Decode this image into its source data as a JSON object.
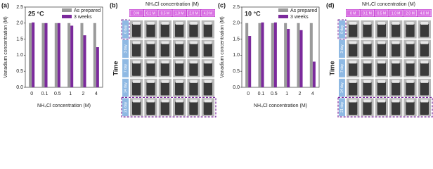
{
  "chart_data": [
    {
      "type": "bar",
      "panel_label": "(a)",
      "annotation": "25 °C",
      "x_label": "NH₄Cl concentration (M)",
      "y_label": "Vanadium concentration (M)",
      "categories": [
        "0",
        "0.1",
        "0.5",
        "1",
        "2",
        "4"
      ],
      "series": [
        {
          "name": "As prepared",
          "color": "#9a9a9a",
          "values": [
            2.0,
            2.0,
            2.0,
            2.0,
            2.0,
            2.0
          ]
        },
        {
          "name": "3 weeks",
          "color": "#7b2a9c",
          "values": [
            2.02,
            2.0,
            2.0,
            1.92,
            1.62,
            1.25
          ]
        }
      ],
      "ylim": [
        0,
        2.5
      ],
      "yticks": [
        {
          "value": 0,
          "label": "0.0"
        },
        0.5,
        {
          "value": 1,
          "label": "1.0"
        },
        1.5,
        {
          "value": 2,
          "label": "2.0"
        },
        2.5
      ],
      "legend": "upper right"
    },
    {
      "type": "bar",
      "panel_label": "(c)",
      "annotation": "10 °C",
      "x_label": "NH₄Cl concentration (M)",
      "y_label": "Vanadium concentration (M)",
      "categories": [
        "0",
        "0.1",
        "0.5",
        "1",
        "2",
        "4"
      ],
      "series": [
        {
          "name": "As prepared",
          "color": "#9a9a9a",
          "values": [
            2.0,
            2.0,
            2.0,
            2.0,
            2.0,
            2.0
          ]
        },
        {
          "name": "3 weeks",
          "color": "#7b2a9c",
          "values": [
            1.6,
            2.02,
            2.02,
            1.82,
            1.78,
            0.8
          ]
        }
      ],
      "ylim": [
        0,
        2.5
      ],
      "yticks": [
        {
          "value": 0,
          "label": "0.0"
        },
        0.5,
        {
          "value": 1,
          "label": "1.0"
        },
        1.5,
        {
          "value": 2,
          "label": "2.0"
        },
        2.5
      ],
      "legend": "upper right"
    }
  ],
  "photos": [
    {
      "panel_label": "(b)",
      "title": "NH₄Cl concentration (M)",
      "axis": "Time",
      "columns": [
        "0 M",
        "0.1 M",
        "0.5 M",
        "1.0 M",
        "2.0 M",
        "4.0 M"
      ],
      "rows": [
        "0 day",
        "3 day",
        "7 day",
        "14 day",
        "21 day"
      ]
    },
    {
      "panel_label": "(d)",
      "title": "NH₄Cl concentration (M)",
      "axis": "Time",
      "columns": [
        "0 M",
        "0.1 M",
        "0.5 M",
        "1.0 M",
        "2.0 M",
        "4.0 M"
      ],
      "rows": [
        "0 day",
        "3 day",
        "7 day",
        "14 day",
        "21 day"
      ]
    }
  ]
}
